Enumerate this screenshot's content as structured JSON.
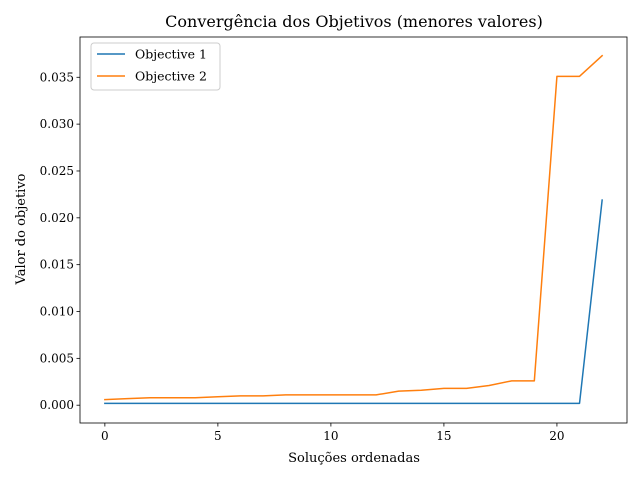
{
  "chart_data": {
    "type": "line",
    "title": "Convergência dos Objetivos (menores valores)",
    "xlabel": "Soluções ordenadas",
    "ylabel": "Valor do objetivo",
    "xlim": [
      -1.1,
      23.1
    ],
    "ylim": [
      -0.0019,
      0.0393
    ],
    "xticks": [
      0,
      5,
      10,
      15,
      20
    ],
    "xtick_labels": [
      "0",
      "5",
      "10",
      "15",
      "20"
    ],
    "yticks": [
      0.0,
      0.005,
      0.01,
      0.015,
      0.02,
      0.025,
      0.03,
      0.035
    ],
    "ytick_labels": [
      "0.000",
      "0.005",
      "0.010",
      "0.015",
      "0.020",
      "0.025",
      "0.030",
      "0.035"
    ],
    "grid": false,
    "legend_position": "top-left",
    "x": [
      0,
      1,
      2,
      3,
      4,
      5,
      6,
      7,
      8,
      9,
      10,
      11,
      12,
      13,
      14,
      15,
      16,
      17,
      18,
      19,
      20,
      21,
      22
    ],
    "series": [
      {
        "name": "Objective 1",
        "color": "#1f77b4",
        "values": [
          0.0002,
          0.0002,
          0.0002,
          0.0002,
          0.0002,
          0.0002,
          0.0002,
          0.0002,
          0.0002,
          0.0002,
          0.0002,
          0.0002,
          0.0002,
          0.0002,
          0.0002,
          0.0002,
          0.0002,
          0.0002,
          0.0002,
          0.0002,
          0.0002,
          0.0002,
          0.0219
        ]
      },
      {
        "name": "Objective 2",
        "color": "#ff7f0e",
        "values": [
          0.0006,
          0.0007,
          0.0008,
          0.0008,
          0.0008,
          0.0009,
          0.001,
          0.001,
          0.0011,
          0.0011,
          0.0011,
          0.0011,
          0.0011,
          0.0015,
          0.0016,
          0.0018,
          0.0018,
          0.0021,
          0.0026,
          0.0026,
          0.0351,
          0.0351,
          0.0373
        ]
      }
    ]
  }
}
